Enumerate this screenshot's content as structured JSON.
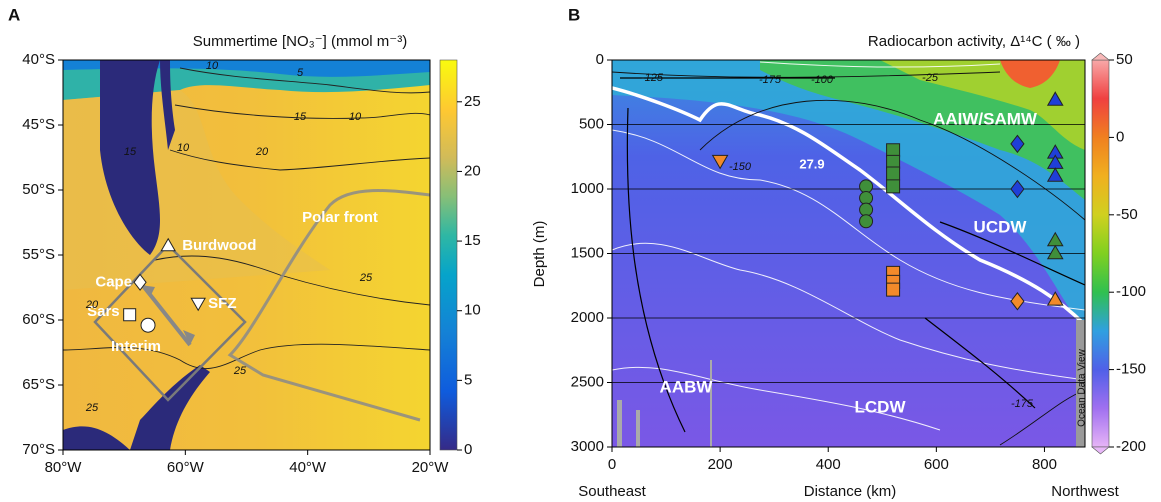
{
  "chart_data": [
    {
      "type": "map",
      "panel": "A",
      "title": "Summertime [NO₃⁻] (mmol m⁻³)",
      "xlim": [
        -80,
        -20
      ],
      "xticks": [
        {
          "value": -80,
          "label": "80°W"
        },
        {
          "value": -60,
          "label": "60°W"
        },
        {
          "value": -40,
          "label": "40°W"
        },
        {
          "value": -20,
          "label": "20°W"
        }
      ],
      "ylim": [
        -70,
        -40
      ],
      "yticks": [
        {
          "value": -40,
          "label": "40°S"
        },
        {
          "value": -45,
          "label": "45°S"
        },
        {
          "value": -50,
          "label": "50°S"
        },
        {
          "value": -55,
          "label": "55°S"
        },
        {
          "value": -60,
          "label": "60°S"
        },
        {
          "value": -65,
          "label": "65°S"
        },
        {
          "value": -70,
          "label": "70°S"
        }
      ],
      "colorbar": {
        "lim": [
          0,
          28
        ],
        "ticks": [
          0,
          5,
          10,
          15,
          20,
          25
        ]
      },
      "sites": [
        {
          "name": "Burdwood",
          "marker": "triangle",
          "x": -62.8,
          "y": -54.3
        },
        {
          "name": "Cape",
          "marker": "diamond",
          "x": -67.4,
          "y": -57.1
        },
        {
          "name": "Sars",
          "marker": "square",
          "x": -69.1,
          "y": -59.6
        },
        {
          "name": "Interim",
          "marker": "circle",
          "x": -66.1,
          "y": -60.4
        },
        {
          "name": "SFZ",
          "marker": "triangle-down",
          "x": -57.9,
          "y": -58.7
        }
      ],
      "annotations": [
        "Polar front"
      ],
      "contour_labels": [
        10,
        5,
        15,
        10,
        20,
        25,
        25,
        25,
        20,
        10,
        15
      ]
    },
    {
      "type": "section",
      "panel": "B",
      "title": "Radiocarbon activity,  Δ¹⁴C ( ‰ )",
      "xlabel": "Distance (km)",
      "ylabel": "Depth (m)",
      "x_end_labels": [
        "Southeast",
        "Northwest"
      ],
      "xlim": [
        0,
        875
      ],
      "xticks": [
        0,
        200,
        400,
        600,
        800
      ],
      "ylim": [
        3000,
        0
      ],
      "yticks": [
        0,
        500,
        1000,
        1500,
        2000,
        2500,
        3000
      ],
      "grid": true,
      "colorbar": {
        "lim": [
          -200,
          50
        ],
        "ticks": [
          -200,
          -150,
          -100,
          -50,
          0,
          50
        ]
      },
      "series": [
        {
          "marker": "triangle-down",
          "color": "#f28a2a",
          "x": [
            200
          ],
          "values": [
            780
          ]
        },
        {
          "marker": "circle",
          "color": "#3f8f3a",
          "x": [
            470,
            470,
            470,
            470
          ],
          "values": [
            980,
            1070,
            1160,
            1250
          ]
        },
        {
          "marker": "square",
          "color": "#3f8f3a",
          "x": [
            520,
            520,
            520,
            520
          ],
          "values": [
            700,
            790,
            880,
            980
          ]
        },
        {
          "marker": "square",
          "color": "#f28a2a",
          "x": [
            520,
            520,
            520
          ],
          "values": [
            1650,
            1720,
            1780
          ]
        },
        {
          "marker": "diamond",
          "color": "#1f3fd8",
          "x": [
            750,
            750
          ],
          "values": [
            650,
            1000
          ]
        },
        {
          "marker": "triangle",
          "color": "#1f3fd8",
          "x": [
            820,
            820,
            820,
            820
          ],
          "values": [
            310,
            720,
            800,
            900
          ]
        },
        {
          "marker": "triangle",
          "color": "#3f8f3a",
          "x": [
            820,
            820
          ],
          "values": [
            1400,
            1500
          ]
        },
        {
          "marker": "diamond",
          "color": "#f28a2a",
          "x": [
            750
          ],
          "values": [
            1870
          ]
        },
        {
          "marker": "triangle",
          "color": "#f28a2a",
          "x": [
            820
          ],
          "values": [
            1860
          ]
        }
      ],
      "annotations": [
        "AAIW/SAMW",
        "UCDW",
        "LCDW",
        "AABW"
      ],
      "isopycnal_label": "27.9",
      "contour_labels": [
        -125,
        -175,
        -100,
        -25,
        -150,
        -175
      ],
      "watermark": "Ocean Data View"
    }
  ]
}
